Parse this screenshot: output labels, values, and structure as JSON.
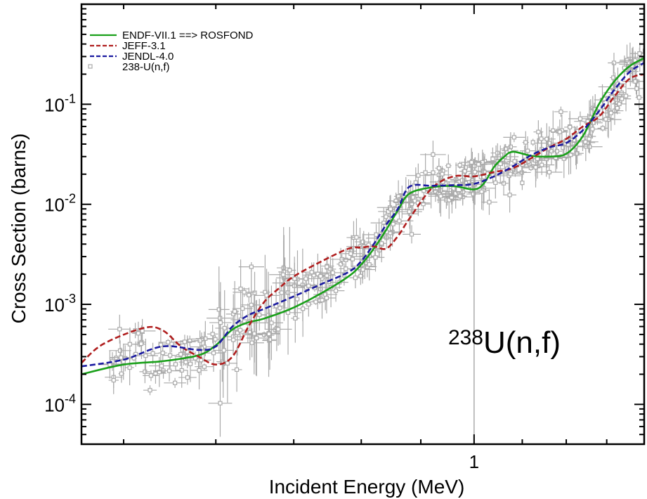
{
  "chart_data": {
    "type": "line",
    "annotation": {
      "base": "U(n,f)",
      "superscript": "238"
    },
    "xlabel": "Incident Energy (MeV)",
    "ylabel": "Cross Section (barns)",
    "x_scale": "log",
    "y_scale": "log",
    "xlim": [
      0.46,
      1.4
    ],
    "ylim": [
      4e-05,
      1
    ],
    "x_ticks": [
      {
        "value": 1,
        "label": "1"
      }
    ],
    "y_ticks": [
      {
        "value": 0.0001,
        "base": "10",
        "exp": "-4"
      },
      {
        "value": 0.001,
        "base": "10",
        "exp": "-3"
      },
      {
        "value": 0.01,
        "base": "10",
        "exp": "-2"
      },
      {
        "value": 0.1,
        "base": "10",
        "exp": "-1"
      }
    ],
    "grid": false,
    "legend_position": "top-left",
    "series": [
      {
        "name": "ENDF-VII.1 ==> ROSFOND",
        "style": "solid",
        "color": "#1aa01a",
        "x": [
          0.46,
          0.5,
          0.54,
          0.58,
          0.6,
          0.62,
          0.64,
          0.66,
          0.7,
          0.74,
          0.78,
          0.8,
          0.82,
          0.84,
          0.86,
          0.88,
          0.92,
          0.96,
          1.0,
          1.02,
          1.04,
          1.06,
          1.08,
          1.12,
          1.16,
          1.2,
          1.24,
          1.28,
          1.32,
          1.36,
          1.4
        ],
        "values": [
          0.0002,
          0.00025,
          0.00027,
          0.00031,
          0.00039,
          0.00056,
          0.00066,
          0.00072,
          0.00093,
          0.0013,
          0.0019,
          0.0025,
          0.0036,
          0.0055,
          0.0087,
          0.0128,
          0.0148,
          0.0152,
          0.0141,
          0.0163,
          0.0235,
          0.0295,
          0.0335,
          0.0305,
          0.03,
          0.032,
          0.048,
          0.1,
          0.17,
          0.24,
          0.29
        ]
      },
      {
        "name": "JEFF-3.1",
        "style": "dashed",
        "color": "#b01e1e",
        "x": [
          0.46,
          0.48,
          0.52,
          0.54,
          0.56,
          0.58,
          0.6,
          0.62,
          0.64,
          0.66,
          0.68,
          0.7,
          0.74,
          0.78,
          0.8,
          0.82,
          0.84,
          0.86,
          0.88,
          0.92,
          0.96,
          1.0,
          1.04,
          1.08,
          1.12,
          1.16,
          1.2,
          1.24,
          1.28,
          1.32,
          1.36,
          1.4
        ],
        "values": [
          0.00026,
          0.0004,
          0.00058,
          0.00055,
          0.00038,
          0.0003,
          0.00025,
          0.0003,
          0.0006,
          0.00105,
          0.00145,
          0.0019,
          0.0027,
          0.0036,
          0.0037,
          0.0038,
          0.0036,
          0.0048,
          0.0072,
          0.0145,
          0.019,
          0.019,
          0.021,
          0.023,
          0.029,
          0.037,
          0.045,
          0.06,
          0.075,
          0.12,
          0.18,
          0.2
        ]
      },
      {
        "name": "JENDL-4.0",
        "style": "dashed",
        "color": "#1a1aa0",
        "x": [
          0.46,
          0.5,
          0.54,
          0.58,
          0.6,
          0.62,
          0.64,
          0.66,
          0.7,
          0.74,
          0.78,
          0.8,
          0.82,
          0.84,
          0.86,
          0.88,
          0.92,
          0.96,
          1.0,
          1.04,
          1.08,
          1.12,
          1.16,
          1.2,
          1.24,
          1.28,
          1.32,
          1.36,
          1.4
        ],
        "values": [
          0.00024,
          0.00028,
          0.00038,
          0.00035,
          0.00038,
          0.0006,
          0.00078,
          0.0009,
          0.0012,
          0.0016,
          0.0021,
          0.0027,
          0.004,
          0.0062,
          0.009,
          0.015,
          0.0153,
          0.0155,
          0.016,
          0.019,
          0.024,
          0.031,
          0.037,
          0.041,
          0.055,
          0.085,
          0.14,
          0.21,
          0.26
        ]
      }
    ],
    "experimental": {
      "name": "238-U(n,f)",
      "color": "#aaaaaa",
      "marker": "open-square",
      "count": 420,
      "trend_x": [
        0.46,
        0.52,
        0.58,
        0.62,
        0.66,
        0.7,
        0.74,
        0.78,
        0.82,
        0.86,
        0.9,
        0.94,
        0.98,
        1.02,
        1.06,
        1.1,
        1.16,
        1.22,
        1.28,
        1.34,
        1.4
      ],
      "trend_y": [
        0.00024,
        0.00028,
        0.00032,
        0.0006,
        0.0009,
        0.0012,
        0.0016,
        0.0022,
        0.004,
        0.008,
        0.014,
        0.016,
        0.018,
        0.019,
        0.024,
        0.03,
        0.035,
        0.045,
        0.075,
        0.15,
        0.26
      ]
    }
  }
}
